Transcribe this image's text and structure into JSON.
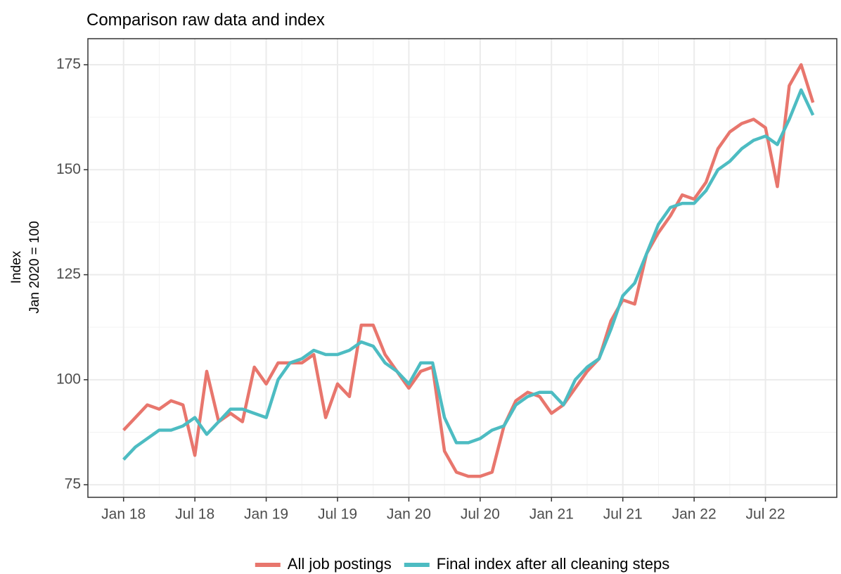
{
  "chart_data": {
    "type": "line",
    "title": "Comparison raw data and index",
    "y_label": [
      "Index",
      "Jan 2020 = 100"
    ],
    "x": [
      "2018-01",
      "2018-02",
      "2018-03",
      "2018-04",
      "2018-05",
      "2018-06",
      "2018-07",
      "2018-08",
      "2018-09",
      "2018-10",
      "2018-11",
      "2018-12",
      "2019-01",
      "2019-02",
      "2019-03",
      "2019-04",
      "2019-05",
      "2019-06",
      "2019-07",
      "2019-08",
      "2019-09",
      "2019-10",
      "2019-11",
      "2019-12",
      "2020-01",
      "2020-02",
      "2020-03",
      "2020-04",
      "2020-05",
      "2020-06",
      "2020-07",
      "2020-08",
      "2020-09",
      "2020-10",
      "2020-11",
      "2020-12",
      "2021-01",
      "2021-02",
      "2021-03",
      "2021-04",
      "2021-05",
      "2021-06",
      "2021-07",
      "2021-08",
      "2021-09",
      "2021-10",
      "2021-11",
      "2021-12",
      "2022-01",
      "2022-02",
      "2022-03",
      "2022-04",
      "2022-05",
      "2022-06",
      "2022-07",
      "2022-08",
      "2022-09",
      "2022-10",
      "2022-11"
    ],
    "series": [
      {
        "name": "All job postings",
        "color": "#e8766d",
        "values": [
          88,
          91,
          94,
          93,
          95,
          94,
          82,
          102,
          90,
          92,
          90,
          103,
          99,
          104,
          104,
          104,
          106,
          91,
          99,
          96,
          113,
          113,
          106,
          102,
          98,
          102,
          103,
          83,
          78,
          77,
          77,
          78,
          89,
          95,
          97,
          96,
          92,
          94,
          98,
          102,
          105,
          114,
          119,
          118,
          130,
          135,
          139,
          144,
          143,
          147,
          155,
          159,
          161,
          162,
          160,
          146,
          170,
          175,
          166
        ]
      },
      {
        "name": "Final index after all cleaning steps",
        "color": "#4dbcc2",
        "values": [
          81,
          84,
          86,
          88,
          88,
          89,
          91,
          87,
          90,
          93,
          93,
          92,
          91,
          100,
          104,
          105,
          107,
          106,
          106,
          107,
          109,
          108,
          104,
          102,
          99,
          104,
          104,
          91,
          85,
          85,
          86,
          88,
          89,
          94,
          96,
          97,
          97,
          94,
          100,
          103,
          105,
          112,
          120,
          123,
          130,
          137,
          141,
          142,
          142,
          145,
          150,
          152,
          155,
          157,
          158,
          156,
          162,
          169,
          163
        ]
      }
    ],
    "xlim": [
      "2017-10",
      "2023-01"
    ],
    "xticks": [
      {
        "value": "2018-01",
        "label": "Jan 18"
      },
      {
        "value": "2018-07",
        "label": "Jul 18"
      },
      {
        "value": "2019-01",
        "label": "Jan 19"
      },
      {
        "value": "2019-07",
        "label": "Jul 19"
      },
      {
        "value": "2020-01",
        "label": "Jan 20"
      },
      {
        "value": "2020-07",
        "label": "Jul 20"
      },
      {
        "value": "2021-01",
        "label": "Jan 21"
      },
      {
        "value": "2021-07",
        "label": "Jul 21"
      },
      {
        "value": "2022-01",
        "label": "Jan 22"
      },
      {
        "value": "2022-07",
        "label": "Jul 22"
      }
    ],
    "ylim": [
      72,
      181.2
    ],
    "yticks": [
      75,
      100,
      125,
      150,
      175
    ],
    "grid": true,
    "legend": "bottom"
  }
}
